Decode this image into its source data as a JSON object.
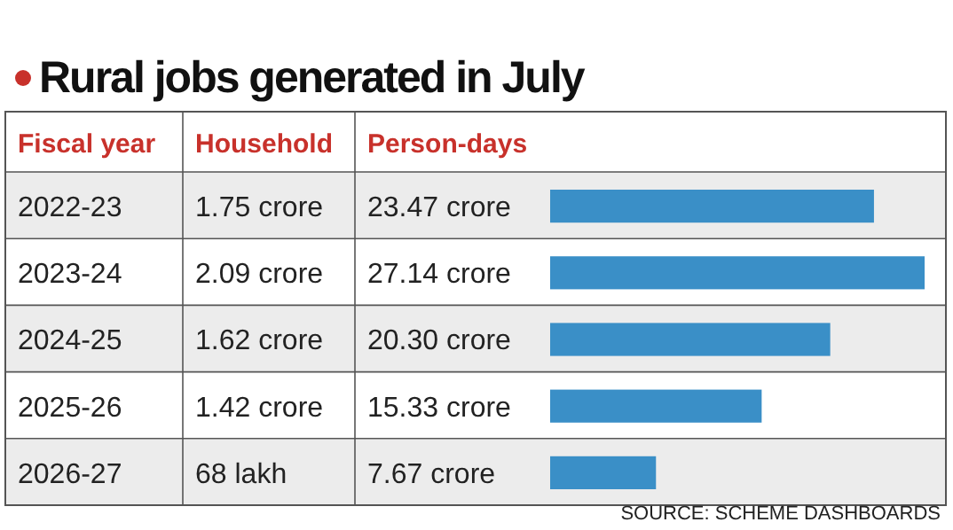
{
  "chart_data": {
    "type": "bar",
    "orientation": "horizontal",
    "title": "Rural jobs generated in July",
    "ylabel": "Fiscal year",
    "xlabel": "Person-days",
    "categories": [
      "2022-23",
      "2023-24",
      "2024-25",
      "2025-26",
      "2026-27"
    ],
    "values": [
      23.47,
      27.14,
      20.3,
      15.33,
      7.67
    ],
    "value_labels": [
      "23.47 crore",
      "27.14 crore",
      "20.30 crore",
      "15.33 crore",
      "7.67 crore"
    ],
    "color": "#3a8fc7",
    "annotations": [
      "Household",
      "1.75 crore",
      "2.09 crore",
      "1.62 crore",
      "1.42 crore",
      "68 lakh",
      "SOURCE: SCHEME DASHBOARDS"
    ]
  }
}
